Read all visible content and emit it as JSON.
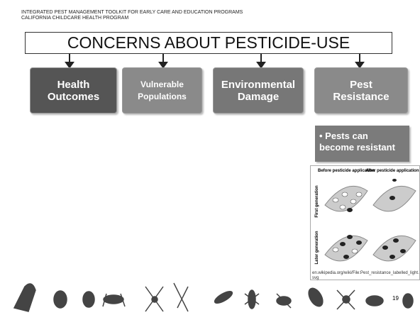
{
  "header": {
    "lines": [
      "INTEGRATED PEST MANAGEMENT TOOLKIT FOR EARLY CARE AND EDUCATION PROGRAMS",
      "CALIFORNIA CHILDCARE HEALTH PROGRAM"
    ]
  },
  "title": "CONCERNS ABOUT PESTICIDE-USE",
  "concerns": [
    {
      "label": "Health Outcomes"
    },
    {
      "label": "Vulnerable Populations"
    },
    {
      "label": "Environmental Damage"
    },
    {
      "label": "Pest Resistance"
    }
  ],
  "detail": "• Pests can become resistant",
  "figure": {
    "columns": [
      "Before pesticide application",
      "After pesticide application"
    ],
    "rows": [
      "First generation",
      "Later generation"
    ],
    "caption": "en.wikipedia.org/wiki/File:Pest_resistance_labelled_light.svg"
  },
  "page_number": "19"
}
